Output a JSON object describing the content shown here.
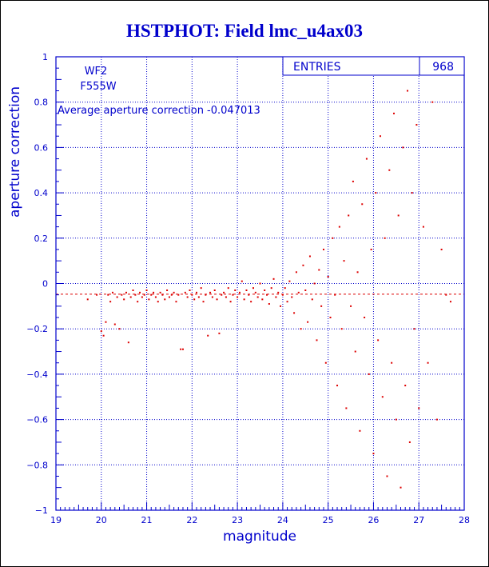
{
  "chart_data": {
    "type": "scatter",
    "title": "HSTPHOT: Field lmc_u4ax03",
    "xlabel": "magnitude",
    "ylabel": "aperture correction",
    "xlim": [
      19,
      28
    ],
    "ylim": [
      -1,
      1
    ],
    "x_ticks": [
      "19",
      "20",
      "21",
      "22",
      "23",
      "24",
      "25",
      "26",
      "27",
      "28"
    ],
    "y_ticks": [
      "-1",
      "-0.8",
      "-0.6",
      "-0.4",
      "-0.2",
      "0",
      "0.2",
      "0.4",
      "0.6",
      "0.8",
      "1"
    ],
    "grid": true,
    "annotations": {
      "chip": "WF2",
      "filter": "F555W",
      "average": "Average aperture correction -0.047013"
    },
    "stats_box": {
      "label": "ENTRIES",
      "value": "968"
    },
    "reference_line_y": -0.047013,
    "colors": {
      "points": "#dd0000",
      "axes": "#0000cc",
      "title": "#0000cc",
      "grid": "#0000cc"
    },
    "points": [
      [
        19.7,
        -0.07
      ],
      [
        19.9,
        -0.05
      ],
      [
        20.0,
        -0.21
      ],
      [
        20.05,
        -0.23
      ],
      [
        20.1,
        -0.17
      ],
      [
        20.15,
        -0.05
      ],
      [
        20.2,
        -0.08
      ],
      [
        20.25,
        -0.04
      ],
      [
        20.3,
        -0.18
      ],
      [
        20.35,
        -0.06
      ],
      [
        20.4,
        -0.2
      ],
      [
        20.45,
        -0.05
      ],
      [
        20.5,
        -0.07
      ],
      [
        20.55,
        -0.04
      ],
      [
        20.6,
        -0.26
      ],
      [
        20.65,
        -0.06
      ],
      [
        20.7,
        -0.03
      ],
      [
        20.75,
        -0.05
      ],
      [
        20.8,
        -0.08
      ],
      [
        20.85,
        -0.04
      ],
      [
        20.9,
        -0.06
      ],
      [
        20.95,
        -0.05
      ],
      [
        21.0,
        -0.03
      ],
      [
        21.05,
        -0.07
      ],
      [
        21.1,
        -0.05
      ],
      [
        21.15,
        -0.04
      ],
      [
        21.2,
        -0.06
      ],
      [
        21.25,
        -0.08
      ],
      [
        21.3,
        -0.04
      ],
      [
        21.35,
        -0.05
      ],
      [
        21.4,
        -0.07
      ],
      [
        21.45,
        -0.03
      ],
      [
        21.5,
        -0.06
      ],
      [
        21.55,
        -0.05
      ],
      [
        21.6,
        -0.04
      ],
      [
        21.65,
        -0.08
      ],
      [
        21.7,
        -0.05
      ],
      [
        21.75,
        -0.29
      ],
      [
        21.8,
        -0.29
      ],
      [
        21.85,
        -0.04
      ],
      [
        21.9,
        -0.06
      ],
      [
        21.95,
        -0.03
      ],
      [
        22.0,
        -0.05
      ],
      [
        22.05,
        -0.07
      ],
      [
        22.1,
        -0.04
      ],
      [
        22.15,
        -0.06
      ],
      [
        22.2,
        -0.02
      ],
      [
        22.25,
        -0.08
      ],
      [
        22.3,
        -0.05
      ],
      [
        22.35,
        -0.23
      ],
      [
        22.4,
        -0.04
      ],
      [
        22.45,
        -0.06
      ],
      [
        22.5,
        -0.03
      ],
      [
        22.55,
        -0.07
      ],
      [
        22.6,
        -0.22
      ],
      [
        22.65,
        -0.05
      ],
      [
        22.7,
        -0.04
      ],
      [
        22.75,
        -0.06
      ],
      [
        22.8,
        -0.02
      ],
      [
        22.85,
        -0.08
      ],
      [
        22.9,
        -0.05
      ],
      [
        22.95,
        -0.03
      ],
      [
        23.0,
        -0.06
      ],
      [
        23.05,
        -0.04
      ],
      [
        23.1,
        0.01
      ],
      [
        23.15,
        -0.07
      ],
      [
        23.2,
        -0.03
      ],
      [
        23.25,
        -0.05
      ],
      [
        23.3,
        -0.08
      ],
      [
        23.35,
        -0.02
      ],
      [
        23.4,
        -0.04
      ],
      [
        23.45,
        -0.06
      ],
      [
        23.5,
        0.0
      ],
      [
        23.55,
        -0.07
      ],
      [
        23.6,
        -0.03
      ],
      [
        23.65,
        -0.05
      ],
      [
        23.7,
        -0.09
      ],
      [
        23.75,
        -0.02
      ],
      [
        23.8,
        0.02
      ],
      [
        23.85,
        -0.06
      ],
      [
        23.9,
        -0.04
      ],
      [
        23.95,
        -0.1
      ],
      [
        24.0,
        -0.05
      ],
      [
        24.05,
        -0.02
      ],
      [
        24.1,
        -0.08
      ],
      [
        24.15,
        0.01
      ],
      [
        24.2,
        -0.06
      ],
      [
        24.25,
        -0.13
      ],
      [
        24.3,
        0.05
      ],
      [
        24.35,
        -0.04
      ],
      [
        24.4,
        -0.2
      ],
      [
        24.45,
        0.08
      ],
      [
        24.5,
        -0.03
      ],
      [
        24.55,
        -0.17
      ],
      [
        24.6,
        0.12
      ],
      [
        24.65,
        -0.07
      ],
      [
        24.7,
        0.0
      ],
      [
        24.75,
        -0.25
      ],
      [
        24.8,
        0.06
      ],
      [
        24.85,
        -0.1
      ],
      [
        24.9,
        0.15
      ],
      [
        24.95,
        -0.35
      ],
      [
        25.0,
        0.03
      ],
      [
        25.05,
        -0.15
      ],
      [
        25.1,
        0.2
      ],
      [
        25.15,
        -0.05
      ],
      [
        25.2,
        -0.45
      ],
      [
        25.25,
        0.25
      ],
      [
        25.3,
        -0.2
      ],
      [
        25.35,
        0.1
      ],
      [
        25.4,
        -0.55
      ],
      [
        25.45,
        0.3
      ],
      [
        25.5,
        -0.1
      ],
      [
        25.55,
        0.45
      ],
      [
        25.6,
        -0.3
      ],
      [
        25.65,
        0.05
      ],
      [
        25.7,
        -0.65
      ],
      [
        25.75,
        0.35
      ],
      [
        25.8,
        -0.15
      ],
      [
        25.85,
        0.55
      ],
      [
        25.9,
        -0.4
      ],
      [
        25.95,
        0.15
      ],
      [
        26.0,
        -0.75
      ],
      [
        26.05,
        0.4
      ],
      [
        26.1,
        -0.25
      ],
      [
        26.15,
        0.65
      ],
      [
        26.2,
        -0.5
      ],
      [
        26.25,
        0.2
      ],
      [
        26.3,
        -0.85
      ],
      [
        26.35,
        0.5
      ],
      [
        26.4,
        -0.35
      ],
      [
        26.45,
        0.75
      ],
      [
        26.5,
        -0.6
      ],
      [
        26.55,
        0.3
      ],
      [
        26.6,
        -0.9
      ],
      [
        26.65,
        0.6
      ],
      [
        26.7,
        -0.45
      ],
      [
        26.75,
        0.85
      ],
      [
        26.8,
        -0.7
      ],
      [
        26.85,
        0.4
      ],
      [
        26.9,
        -0.2
      ],
      [
        26.95,
        0.7
      ],
      [
        27.0,
        -0.55
      ],
      [
        27.1,
        0.25
      ],
      [
        27.2,
        -0.35
      ],
      [
        27.3,
        0.8
      ],
      [
        27.4,
        -0.6
      ],
      [
        27.5,
        0.15
      ],
      [
        27.6,
        -0.05
      ],
      [
        27.7,
        -0.08
      ]
    ]
  }
}
